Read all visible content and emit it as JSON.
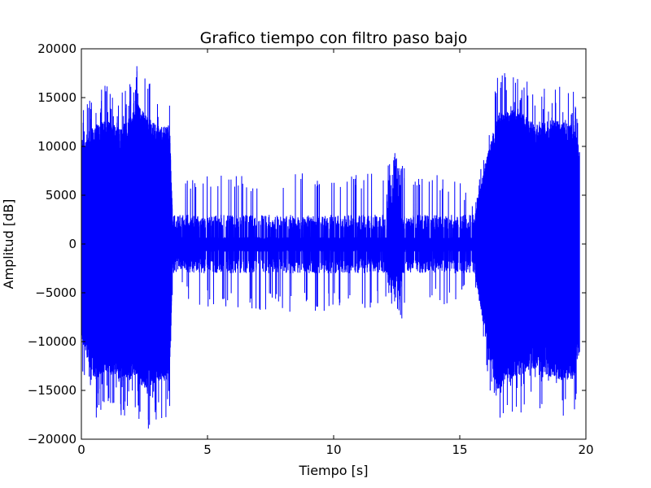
{
  "chart_data": {
    "type": "line",
    "title": "Grafico tiempo con filtro paso bajo",
    "xlabel": "Tiempo [s]",
    "ylabel": "Amplitud [dB]",
    "xlim": [
      0,
      20
    ],
    "ylim": [
      -20000,
      20000
    ],
    "xticks": [
      0,
      5,
      10,
      15,
      20
    ],
    "yticks": [
      -20000,
      -15000,
      -10000,
      -5000,
      0,
      5000,
      10000,
      15000,
      20000
    ],
    "xtick_labels": [
      "0",
      "5",
      "10",
      "15",
      "20"
    ],
    "ytick_labels": [
      "−20000",
      "−15000",
      "−10000",
      "−5000",
      "0",
      "5000",
      "10000",
      "15000",
      "20000"
    ],
    "grid": false,
    "line_color": "#0000ff",
    "series": [
      {
        "name": "",
        "description_free": true,
        "segments": [
          {
            "x_start": 0.0,
            "x_end": 3.65,
            "peak_max": 17300,
            "peak_min": -17800,
            "typical_amp": 12000,
            "style": "dense"
          },
          {
            "x_start": 3.65,
            "x_end": 15.6,
            "peak_max": 7500,
            "peak_min": -7200,
            "typical_amp": 800,
            "style": "spiky"
          },
          {
            "x_start": 12.1,
            "x_end": 12.7,
            "peak_max": 9500,
            "peak_min": -8500,
            "typical_amp": 3500,
            "style": "burst"
          },
          {
            "x_start": 15.6,
            "x_end": 19.75,
            "peak_max": 16400,
            "peak_min": -17900,
            "typical_amp": 12000,
            "style": "dense"
          }
        ],
        "x": [
          0.0,
          0.5,
          1.0,
          1.5,
          2.0,
          2.15,
          2.5,
          3.0,
          3.5,
          3.65,
          4.0,
          5.0,
          6.0,
          7.0,
          8.0,
          9.0,
          10.0,
          11.0,
          12.0,
          12.45,
          13.0,
          14.0,
          15.0,
          15.6,
          16.0,
          16.5,
          17.0,
          17.5,
          18.0,
          18.5,
          19.0,
          19.5,
          19.75
        ],
        "y_max": [
          12500,
          14300,
          15000,
          14000,
          15500,
          17300,
          15800,
          14300,
          14300,
          0,
          7000,
          7200,
          7300,
          7000,
          7500,
          7300,
          7000,
          7300,
          7500,
          9500,
          7300,
          7200,
          7000,
          3500,
          9500,
          15800,
          16200,
          15800,
          14300,
          15000,
          14800,
          14300,
          11500
        ],
        "y_min": [
          -11500,
          -16500,
          -15500,
          -16000,
          -16500,
          -15500,
          -17800,
          -16500,
          -16500,
          0,
          -5500,
          -6800,
          -6500,
          -6800,
          -7000,
          -7000,
          -6800,
          -6800,
          -6500,
          -8500,
          -6800,
          -6500,
          -6800,
          -3500,
          -11000,
          -17800,
          -16000,
          -15800,
          -15000,
          -16000,
          -16500,
          -16500,
          -13000
        ]
      }
    ]
  }
}
